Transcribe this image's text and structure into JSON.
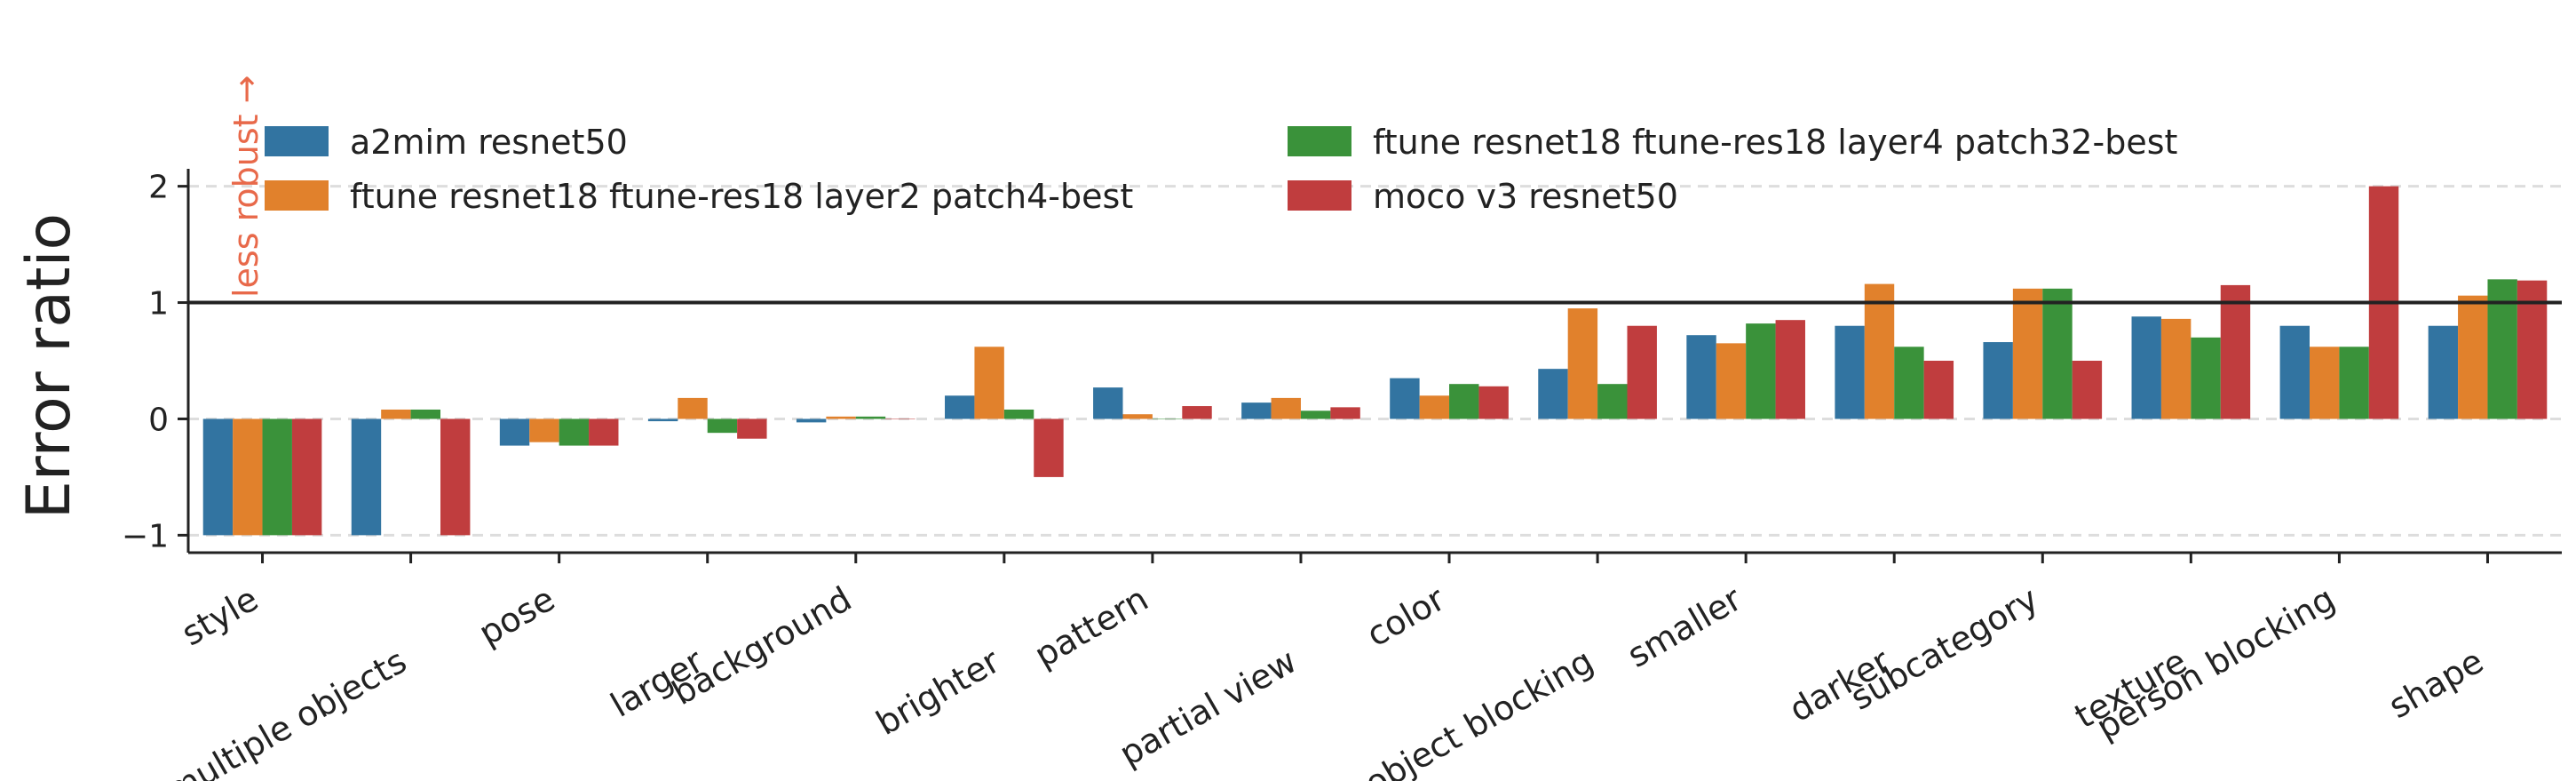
{
  "chart_data": {
    "type": "bar",
    "title": "",
    "xlabel": "",
    "ylabel": "Error ratio",
    "ylim": [
      -1.15,
      2.15
    ],
    "yticks": [
      -1,
      0,
      1,
      2
    ],
    "ytick_labels": [
      "−1",
      "0",
      "1",
      "2"
    ],
    "grid": "horizontal dashed at y ticks",
    "reference_line": 1,
    "annotation": {
      "text": "less robust →",
      "color": "#e8694a"
    },
    "legend_placement": "top",
    "categories": [
      "style",
      "multiple objects",
      "pose",
      "larger",
      "background",
      "brighter",
      "pattern",
      "partial view",
      "color",
      "object blocking",
      "smaller",
      "darker",
      "subcategory",
      "texture",
      "person blocking",
      "shape"
    ],
    "series": [
      {
        "name": "a2mim resnet50",
        "color": "#3274a1",
        "values": [
          -1.0,
          -1.0,
          -0.23,
          -0.02,
          -0.03,
          0.2,
          0.27,
          0.14,
          0.35,
          0.43,
          0.72,
          0.8,
          0.66,
          0.88,
          0.8,
          0.8
        ]
      },
      {
        "name": "ftune resnet18 ftune-res18 layer2 patch4-best",
        "color": "#e1812c",
        "values": [
          -1.0,
          0.08,
          -0.2,
          0.18,
          0.02,
          0.62,
          0.04,
          0.18,
          0.2,
          0.95,
          0.65,
          1.16,
          1.12,
          0.86,
          0.62,
          1.06
        ]
      },
      {
        "name": "ftune resnet18 ftune-res18 layer4 patch32-best",
        "color": "#3a923a",
        "values": [
          -1.0,
          0.08,
          -0.23,
          -0.12,
          0.02,
          0.08,
          0.0,
          0.07,
          0.3,
          0.3,
          0.82,
          0.62,
          1.12,
          0.7,
          0.62,
          1.2
        ]
      },
      {
        "name": "moco v3 resnet50",
        "color": "#c03d3e",
        "values": [
          -1.0,
          -1.0,
          -0.23,
          -0.17,
          0.0,
          -0.5,
          0.11,
          0.1,
          0.28,
          0.8,
          0.85,
          0.5,
          0.5,
          1.15,
          2.0,
          1.19
        ]
      }
    ]
  }
}
